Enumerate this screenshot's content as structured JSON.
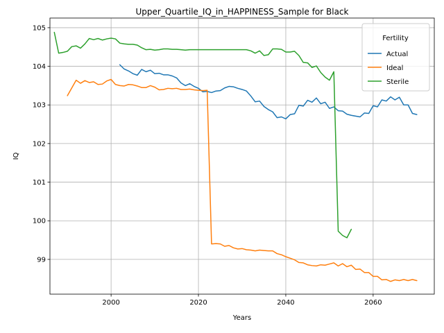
{
  "chart_data": {
    "type": "line",
    "title": "Upper_Quartile_IQ_in_HAPPINESS_Sample for Black",
    "xlabel": "Years",
    "ylabel": "IQ",
    "xlim": [
      1986,
      2074
    ],
    "ylim": [
      98.1,
      105.25
    ],
    "xticks": [
      2000,
      2020,
      2040,
      2060
    ],
    "yticks": [
      99,
      100,
      101,
      102,
      103,
      104,
      105
    ],
    "grid": true,
    "legend": {
      "title": "Fertility",
      "position": "top-right"
    },
    "series": [
      {
        "name": "Actual",
        "color": "#1f77b4",
        "x": [
          2002,
          2003,
          2004,
          2005,
          2006,
          2007,
          2008,
          2009,
          2010,
          2011,
          2012,
          2013,
          2014,
          2015,
          2016,
          2017,
          2018,
          2019,
          2020,
          2021,
          2022,
          2023,
          2024,
          2025,
          2026,
          2027,
          2028,
          2029,
          2030,
          2031,
          2032,
          2033,
          2034,
          2035,
          2036,
          2037,
          2038,
          2039,
          2040,
          2041,
          2042,
          2043,
          2044,
          2045,
          2046,
          2047,
          2048,
          2049,
          2050,
          2051,
          2052,
          2053,
          2054,
          2055,
          2056,
          2057,
          2058,
          2059,
          2060,
          2061,
          2062,
          2063,
          2064,
          2065,
          2066,
          2067,
          2068,
          2069,
          2070
        ],
        "y": [
          104.04,
          103.93,
          103.88,
          103.81,
          103.77,
          103.92,
          103.86,
          103.9,
          103.81,
          103.82,
          103.78,
          103.78,
          103.75,
          103.7,
          103.57,
          103.5,
          103.55,
          103.48,
          103.43,
          103.34,
          103.35,
          103.32,
          103.36,
          103.37,
          103.44,
          103.48,
          103.47,
          103.43,
          103.4,
          103.36,
          103.23,
          103.08,
          103.1,
          102.96,
          102.88,
          102.82,
          102.67,
          102.69,
          102.64,
          102.75,
          102.77,
          102.99,
          102.97,
          103.12,
          103.07,
          103.18,
          103.03,
          103.07,
          102.91,
          102.95,
          102.85,
          102.84,
          102.76,
          102.73,
          102.71,
          102.69,
          102.79,
          102.78,
          102.98,
          102.95,
          103.13,
          103.1,
          103.21,
          103.13,
          103.2,
          103.0,
          103.0,
          102.78,
          102.75
        ]
      },
      {
        "name": "Ideal",
        "color": "#ff7f0e",
        "x": [
          1990,
          1991,
          1992,
          1993,
          1994,
          1995,
          1996,
          1997,
          1998,
          1999,
          2000,
          2001,
          2002,
          2003,
          2004,
          2005,
          2006,
          2007,
          2008,
          2009,
          2010,
          2011,
          2012,
          2013,
          2014,
          2015,
          2016,
          2017,
          2018,
          2019,
          2020,
          2021,
          2022,
          2023,
          2024,
          2025,
          2026,
          2027,
          2028,
          2029,
          2030,
          2031,
          2032,
          2033,
          2034,
          2035,
          2036,
          2037,
          2038,
          2039,
          2040,
          2041,
          2042,
          2043,
          2044,
          2045,
          2046,
          2047,
          2048,
          2049,
          2050,
          2051,
          2052,
          2053,
          2054,
          2055,
          2056,
          2057,
          2058,
          2059,
          2060,
          2061,
          2062,
          2063,
          2064,
          2065,
          2066,
          2067,
          2068,
          2069,
          2070
        ],
        "y": [
          103.24,
          103.44,
          103.64,
          103.56,
          103.63,
          103.58,
          103.6,
          103.53,
          103.54,
          103.62,
          103.66,
          103.53,
          103.5,
          103.49,
          103.53,
          103.52,
          103.49,
          103.45,
          103.45,
          103.5,
          103.46,
          103.39,
          103.4,
          103.43,
          103.42,
          103.43,
          103.4,
          103.4,
          103.41,
          103.39,
          103.38,
          103.37,
          103.38,
          99.4,
          99.41,
          99.4,
          99.34,
          99.36,
          99.3,
          99.27,
          99.28,
          99.25,
          99.24,
          99.22,
          99.24,
          99.23,
          99.22,
          99.22,
          99.15,
          99.12,
          99.07,
          99.03,
          98.99,
          98.92,
          98.91,
          98.86,
          98.84,
          98.83,
          98.86,
          98.85,
          98.88,
          98.91,
          98.83,
          98.89,
          98.81,
          98.85,
          98.74,
          98.75,
          98.66,
          98.66,
          98.56,
          98.56,
          98.47,
          98.48,
          98.43,
          98.47,
          98.45,
          98.48,
          98.45,
          98.48,
          98.45
        ]
      },
      {
        "name": "Sterile",
        "color": "#2ca02c",
        "x": [
          1987,
          1988,
          1989,
          1990,
          1991,
          1992,
          1993,
          1994,
          1995,
          1996,
          1997,
          1998,
          1999,
          2000,
          2001,
          2002,
          2003,
          2004,
          2005,
          2006,
          2007,
          2008,
          2009,
          2010,
          2011,
          2012,
          2013,
          2014,
          2015,
          2016,
          2017,
          2018,
          2019,
          2020,
          2021,
          2022,
          2023,
          2024,
          2025,
          2026,
          2027,
          2028,
          2029,
          2030,
          2031,
          2032,
          2033,
          2034,
          2035,
          2036,
          2037,
          2038,
          2039,
          2040,
          2041,
          2042,
          2043,
          2044,
          2045,
          2046,
          2047,
          2048,
          2049,
          2050,
          2051,
          2052,
          2053,
          2054,
          2055
        ],
        "y": [
          104.88,
          104.34,
          104.36,
          104.39,
          104.51,
          104.53,
          104.47,
          104.58,
          104.72,
          104.69,
          104.72,
          104.68,
          104.71,
          104.73,
          104.71,
          104.6,
          104.58,
          104.57,
          104.57,
          104.55,
          104.48,
          104.43,
          104.44,
          104.42,
          104.43,
          104.45,
          104.45,
          104.44,
          104.44,
          104.43,
          104.42,
          104.43,
          104.43,
          104.43,
          104.43,
          104.43,
          104.43,
          104.43,
          104.43,
          104.43,
          104.43,
          104.43,
          104.43,
          104.43,
          104.43,
          104.4,
          104.34,
          104.4,
          104.28,
          104.3,
          104.45,
          104.45,
          104.44,
          104.37,
          104.37,
          104.39,
          104.28,
          104.1,
          104.09,
          103.97,
          104.01,
          103.84,
          103.72,
          103.64,
          103.86,
          99.73,
          99.62,
          99.56,
          99.78
        ]
      }
    ]
  }
}
